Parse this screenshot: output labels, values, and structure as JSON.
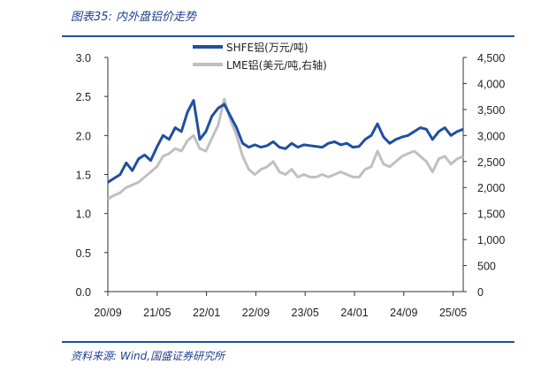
{
  "figure": {
    "title": "图表35:  内外盘铝价走势",
    "source": "资料来源:  Wind,国盛证券研究所"
  },
  "colors": {
    "shfe": "#1f4fa0",
    "lme": "#c0c0c0",
    "rule": "#1f4fa0",
    "title": "#1f3f8f"
  },
  "chart_data": {
    "type": "line",
    "legend_position": "top-center",
    "grid": false,
    "x_ticks": [
      "20/09",
      "21/05",
      "22/01",
      "22/09",
      "23/05",
      "24/01",
      "24/09",
      "25/05"
    ],
    "x_range": [
      0,
      58
    ],
    "y_left": {
      "range": [
        0.0,
        3.0
      ],
      "ticks": [
        "3.0",
        "2.5",
        "2.0",
        "1.5",
        "1.0",
        "0.5",
        "0.0"
      ],
      "tick_values": [
        3.0,
        2.5,
        2.0,
        1.5,
        1.0,
        0.5,
        0.0
      ]
    },
    "y_right": {
      "range": [
        0,
        4500
      ],
      "ticks": [
        "4,500",
        "4,000",
        "3,500",
        "3,000",
        "2,500",
        "2,000",
        "1,500",
        "1,000",
        "500",
        "0"
      ],
      "tick_values": [
        4500,
        4000,
        3500,
        3000,
        2500,
        2000,
        1500,
        1000,
        500,
        0
      ]
    },
    "series": [
      {
        "name": "SHFE铝(万元/吨)",
        "axis": "left",
        "x": [
          0,
          1,
          2,
          3,
          4,
          5,
          6,
          7,
          8,
          9,
          10,
          11,
          12,
          13,
          14,
          15,
          16,
          17,
          18,
          19,
          20,
          21,
          22,
          23,
          24,
          25,
          26,
          27,
          28,
          29,
          30,
          31,
          32,
          33,
          34,
          35,
          36,
          37,
          38,
          39,
          40,
          41,
          42,
          43,
          44,
          45,
          46,
          47,
          48,
          49,
          50,
          51,
          52,
          53,
          54,
          55,
          56,
          57,
          58
        ],
        "values": [
          1.4,
          1.45,
          1.5,
          1.65,
          1.55,
          1.7,
          1.75,
          1.68,
          1.85,
          2.0,
          1.95,
          2.1,
          2.05,
          2.3,
          2.45,
          1.95,
          2.05,
          2.25,
          2.35,
          2.4,
          2.25,
          2.1,
          1.9,
          1.85,
          1.88,
          1.85,
          1.87,
          1.92,
          1.85,
          1.83,
          1.9,
          1.85,
          1.88,
          1.87,
          1.86,
          1.85,
          1.9,
          1.92,
          1.88,
          1.9,
          1.85,
          1.86,
          1.95,
          2.0,
          2.15,
          1.98,
          1.9,
          1.95,
          1.98,
          2.0,
          2.05,
          2.1,
          2.08,
          1.95,
          2.05,
          2.1,
          2.0,
          2.05,
          2.08
        ]
      },
      {
        "name": "LME铝(美元/吨,右轴)",
        "axis": "right",
        "x": [
          0,
          1,
          2,
          3,
          4,
          5,
          6,
          7,
          8,
          9,
          10,
          11,
          12,
          13,
          14,
          15,
          16,
          17,
          18,
          19,
          20,
          21,
          22,
          23,
          24,
          25,
          26,
          27,
          28,
          29,
          30,
          31,
          32,
          33,
          34,
          35,
          36,
          37,
          38,
          39,
          40,
          41,
          42,
          43,
          44,
          45,
          46,
          47,
          48,
          49,
          50,
          51,
          52,
          53,
          54,
          55,
          56,
          57,
          58
        ],
        "values": [
          1780,
          1850,
          1900,
          2000,
          2050,
          2100,
          2200,
          2300,
          2400,
          2600,
          2650,
          2750,
          2700,
          2900,
          3000,
          2750,
          2700,
          2950,
          3200,
          3700,
          3300,
          3000,
          2600,
          2350,
          2250,
          2350,
          2400,
          2500,
          2300,
          2250,
          2350,
          2200,
          2250,
          2200,
          2200,
          2250,
          2200,
          2250,
          2300,
          2250,
          2200,
          2200,
          2350,
          2400,
          2700,
          2450,
          2400,
          2500,
          2600,
          2650,
          2700,
          2600,
          2500,
          2300,
          2550,
          2600,
          2450,
          2550,
          2600
        ]
      }
    ]
  }
}
